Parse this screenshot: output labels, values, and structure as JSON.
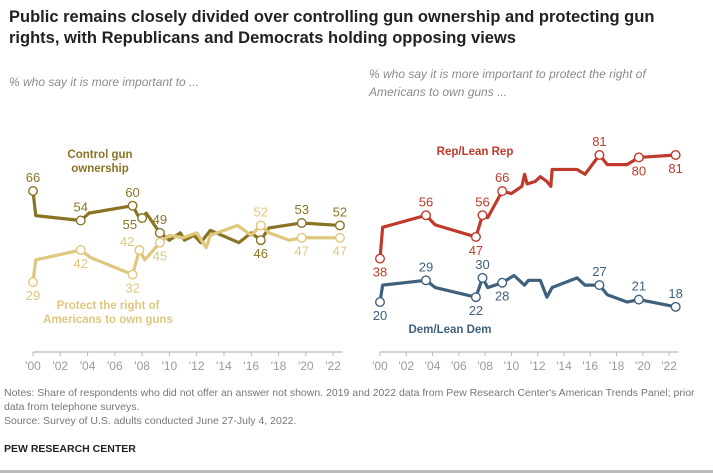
{
  "title": "Public remains closely divided over controlling gun ownership and protecting gun rights, with Republicans and Democrats holding opposing views",
  "notes": "Notes: Share of respondents who did not offer an answer not shown. 2019 and 2022 data from Pew Research Center's American Trends Panel; prior data from telephone surveys.",
  "source": "Source: Survey of U.S. adults conducted June 27-July 4, 2022.",
  "brand": "PEW RESEARCH CENTER",
  "chart_data": [
    {
      "type": "line",
      "subtitle": "% who say it is more important to ...",
      "x_tick_labels": [
        "'00",
        "'02",
        "'04",
        "'06",
        "'08",
        "'10",
        "'12",
        "'14",
        "'16",
        "'18",
        "'20",
        "'22"
      ],
      "xlim": [
        2000,
        2022.7
      ],
      "grid": false,
      "series": [
        {
          "name": "Control gun ownership",
          "color": "#8a7424",
          "x": [
            2000.0,
            2000.2,
            2003.5,
            2004.1,
            2007.3,
            2007.7,
            2008.0,
            2008.3,
            2009.3,
            2010.0,
            2010.8,
            2011.1,
            2011.8,
            2012.3,
            2013.0,
            2015.1,
            2016.0,
            2016.7,
            2017.3,
            2019.7,
            2022.5
          ],
          "y": [
            66,
            56,
            54,
            57,
            60,
            56,
            55,
            57,
            49,
            46,
            49,
            46,
            48,
            45,
            50,
            45,
            49,
            46,
            51,
            53,
            52
          ],
          "labels": [
            {
              "i": 0,
              "text": "66",
              "pos": "above"
            },
            {
              "i": 2,
              "text": "54",
              "pos": "above"
            },
            {
              "i": 4,
              "text": "60",
              "pos": "above"
            },
            {
              "i": 6,
              "text": "55",
              "pos": "below"
            },
            {
              "i": 8,
              "text": "49",
              "pos": "above"
            },
            {
              "i": 17,
              "text": "46",
              "pos": "below"
            },
            {
              "i": 19,
              "text": "53",
              "pos": "above"
            },
            {
              "i": 20,
              "text": "52",
              "pos": "above"
            }
          ]
        },
        {
          "name": "Protect the right of Americans to own guns",
          "color": "#e0c77e",
          "x": [
            2000.0,
            2000.2,
            2003.5,
            2004.2,
            2007.3,
            2007.8,
            2008.2,
            2009.3,
            2010.0,
            2011.0,
            2012.0,
            2012.7,
            2013.0,
            2015.0,
            2016.0,
            2016.7,
            2017.3,
            2018.8,
            2019.7,
            2022.5
          ],
          "y": [
            29,
            38,
            42,
            39,
            32,
            42,
            38,
            45,
            48,
            47,
            49,
            43,
            48,
            52,
            48,
            52,
            49,
            46,
            47,
            47
          ],
          "labels": [
            {
              "i": 0,
              "text": "29",
              "pos": "below"
            },
            {
              "i": 2,
              "text": "42",
              "pos": "below"
            },
            {
              "i": 4,
              "text": "32",
              "pos": "below"
            },
            {
              "i": 5,
              "text": "42",
              "pos": "above"
            },
            {
              "i": 7,
              "text": "45",
              "pos": "below"
            },
            {
              "i": 15,
              "text": "52",
              "pos": "above"
            },
            {
              "i": 18,
              "text": "47",
              "pos": "below"
            },
            {
              "i": 19,
              "text": "47",
              "pos": "below"
            }
          ]
        }
      ]
    },
    {
      "type": "line",
      "subtitle": "% who say it is more important to protect the right of Americans to own guns ...",
      "x_tick_labels": [
        "'00",
        "'02",
        "'04",
        "'06",
        "'08",
        "'10",
        "'12",
        "'14",
        "'16",
        "'18",
        "'20",
        "'22"
      ],
      "xlim": [
        2000,
        2022.7
      ],
      "grid": false,
      "series": [
        {
          "name": "Rep/Lean Rep",
          "color": "#bf3a2b",
          "x": [
            2000.0,
            2000.2,
            2003.5,
            2004.2,
            2007.3,
            2007.8,
            2008.2,
            2009.3,
            2010.0,
            2010.8,
            2011.0,
            2011.2,
            2011.8,
            2012.2,
            2012.7,
            2013.0,
            2013.1,
            2015.0,
            2015.6,
            2016.7,
            2017.3,
            2018.8,
            2019.7,
            2022.5
          ],
          "y": [
            38,
            51,
            56,
            52,
            47,
            56,
            55,
            66,
            65,
            68,
            73,
            69,
            70,
            72,
            70,
            68,
            75,
            75,
            73,
            81,
            77,
            77,
            80,
            81
          ],
          "labels": [
            {
              "i": 0,
              "text": "38",
              "pos": "below"
            },
            {
              "i": 2,
              "text": "56",
              "pos": "above"
            },
            {
              "i": 4,
              "text": "47",
              "pos": "below"
            },
            {
              "i": 5,
              "text": "56",
              "pos": "above"
            },
            {
              "i": 7,
              "text": "66",
              "pos": "above"
            },
            {
              "i": 19,
              "text": "81",
              "pos": "above"
            },
            {
              "i": 22,
              "text": "80",
              "pos": "below"
            },
            {
              "i": 23,
              "text": "81",
              "pos": "below"
            }
          ]
        },
        {
          "name": "Dem/Lean Dem",
          "color": "#3f617d",
          "x": [
            2000.0,
            2000.2,
            2003.5,
            2004.2,
            2007.3,
            2007.8,
            2008.2,
            2009.3,
            2010.2,
            2011.0,
            2011.3,
            2012.2,
            2012.7,
            2013.1,
            2015.0,
            2015.6,
            2016.7,
            2017.3,
            2018.8,
            2019.7,
            2022.5
          ],
          "y": [
            20,
            27,
            29,
            26,
            22,
            30,
            26,
            28,
            31,
            27,
            29,
            29,
            22,
            26,
            30,
            27,
            27,
            23,
            20,
            21,
            18
          ],
          "labels": [
            {
              "i": 0,
              "text": "20",
              "pos": "below"
            },
            {
              "i": 2,
              "text": "29",
              "pos": "above"
            },
            {
              "i": 4,
              "text": "22",
              "pos": "below"
            },
            {
              "i": 5,
              "text": "30",
              "pos": "above"
            },
            {
              "i": 7,
              "text": "28",
              "pos": "below"
            },
            {
              "i": 16,
              "text": "27",
              "pos": "above"
            },
            {
              "i": 19,
              "text": "21",
              "pos": "above"
            },
            {
              "i": 20,
              "text": "18",
              "pos": "above"
            }
          ]
        }
      ]
    }
  ]
}
